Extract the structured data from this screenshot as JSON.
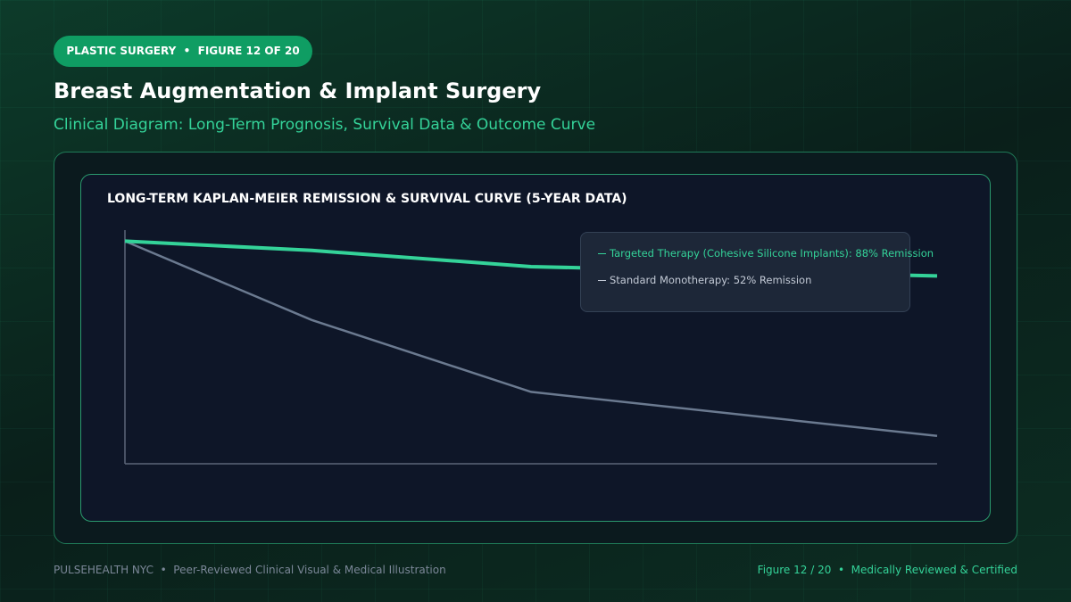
{
  "header": {
    "badge": "PLASTIC SURGERY  •  FIGURE 12 OF 20",
    "title": "Breast Augmentation & Implant Surgery",
    "subtitle": "Clinical Diagram: Long-Term Prognosis, Survival Data & Outcome Curve"
  },
  "chart_data": {
    "type": "line",
    "title": "LONG-TERM KAPLAN-MEIER REMISSION & SURVIVAL CURVE (5-YEAR DATA)",
    "x": [
      0,
      1.15,
      2.5,
      5
    ],
    "xlim": [
      0,
      5
    ],
    "ylim": [
      0,
      100
    ],
    "series": [
      {
        "name": "Targeted Therapy (Cohesive Silicone Implants): 88% Remission",
        "color": "#34d399",
        "values": [
          96,
          92,
          85,
          81
        ]
      },
      {
        "name": "Standard Monotherapy: 52% Remission",
        "color": "#6b7a90",
        "values": [
          96,
          62,
          31,
          12
        ]
      }
    ],
    "legend": "top-right"
  },
  "footer": {
    "left": "PULSEHEALTH NYC  •  Peer-Reviewed Clinical Visual & Medical Illustration",
    "right": "Figure 12 / 20  •  Medically Reviewed & Certified"
  }
}
